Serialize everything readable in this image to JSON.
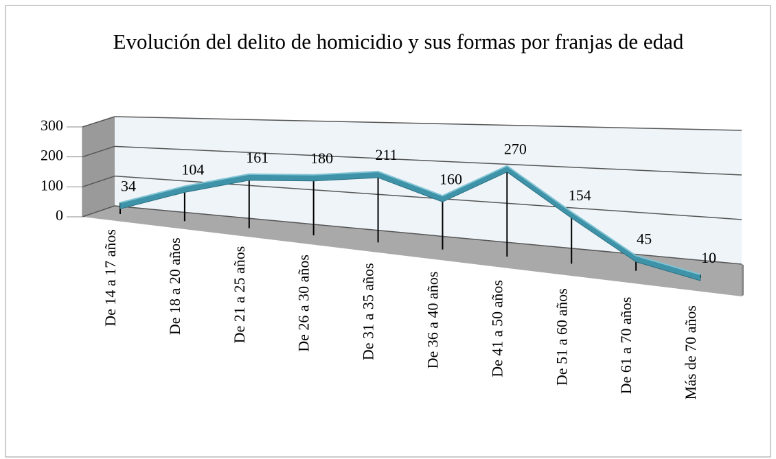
{
  "chart_data": {
    "type": "line3d",
    "title": "Evolución del delito de homicidio y sus formas por franjas de edad",
    "categories": [
      "De 14 a 17 años",
      "De 18 a 20 años",
      "De 21 a 25 años",
      "De 26 a 30 años",
      "De 31 a 35 años",
      "De 36 a 40 años",
      "De 41 a 50 años",
      "De 51 a 60 años",
      "De 61 a 70 años",
      "Más de 70 años"
    ],
    "values": [
      34,
      104,
      161,
      180,
      211,
      160,
      270,
      154,
      45,
      10
    ],
    "color": "#3f93a8",
    "ylim": [
      0,
      300
    ],
    "yticks": [
      0,
      100,
      200,
      300
    ],
    "grid": true
  }
}
